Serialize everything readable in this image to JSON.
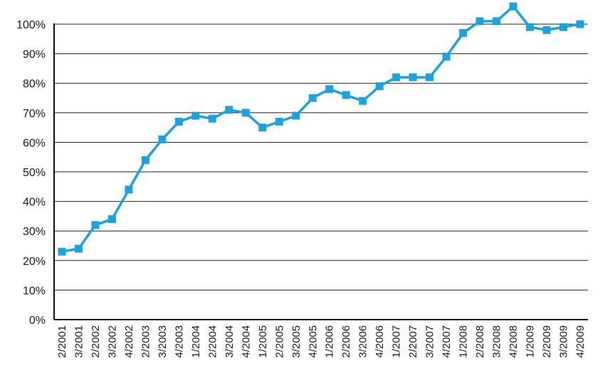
{
  "chart_data": {
    "type": "line",
    "title": "",
    "xlabel": "",
    "ylabel": "",
    "ylim": [
      0,
      100
    ],
    "y_ticks": [
      "0%",
      "10%",
      "20%",
      "30%",
      "40%",
      "50%",
      "60%",
      "70%",
      "80%",
      "90%",
      "100%"
    ],
    "grid": "horizontal",
    "legend": "none",
    "categories": [
      "2/2001",
      "3/2001",
      "2/2002",
      "3/2002",
      "4/2002",
      "2/2003",
      "3/2003",
      "4/2003",
      "1/2004",
      "2/2004",
      "3/2004",
      "4/2004",
      "1/2005",
      "2/2005",
      "3/2005",
      "4/2005",
      "1/2006",
      "2/2006",
      "3/2006",
      "4/2006",
      "1/2007",
      "2/2007",
      "3/2007",
      "4/2007",
      "1/2008",
      "2/2008",
      "3/2008",
      "4/2008",
      "1/2009",
      "2/2009",
      "3/2009",
      "4/2009"
    ],
    "series": [
      {
        "color": "#1aa3e0",
        "marker": "square",
        "values": [
          23,
          24,
          32,
          34,
          44,
          54,
          61,
          67,
          69,
          68,
          71,
          70,
          65,
          67,
          69,
          75,
          78,
          76,
          74,
          79,
          82,
          82,
          82,
          89,
          97,
          101,
          101,
          106,
          99,
          98,
          99,
          100
        ]
      }
    ]
  }
}
